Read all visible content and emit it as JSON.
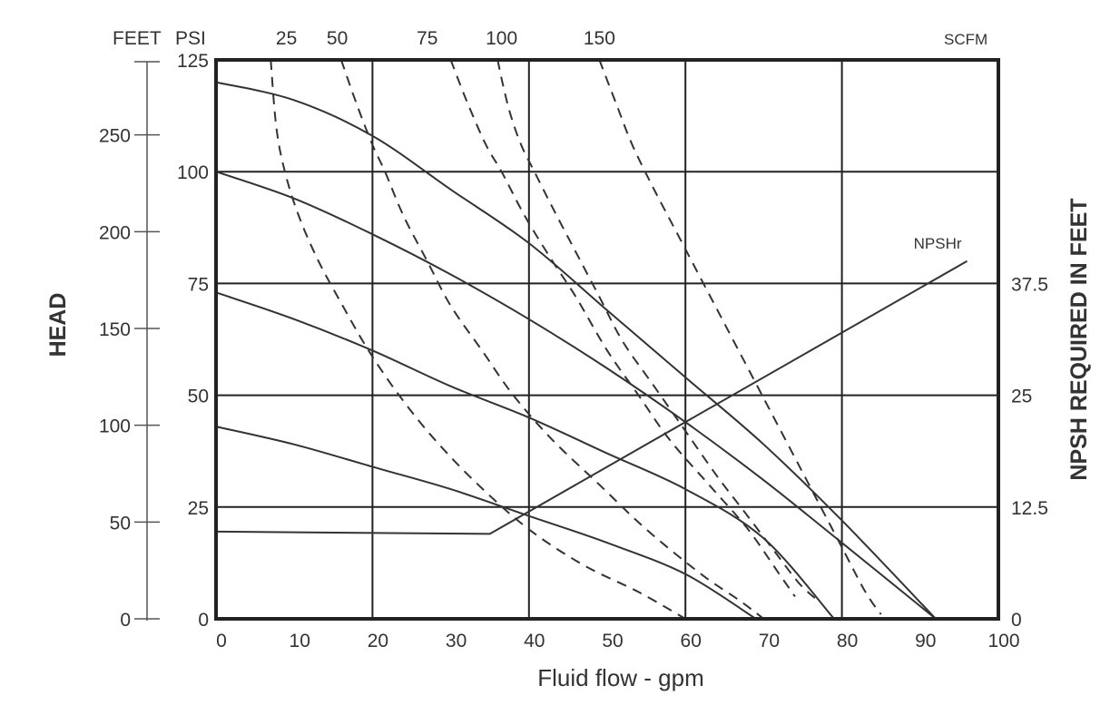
{
  "chart_data": {
    "type": "line",
    "title": "",
    "xlabel": "Fluid flow - gpm",
    "x_ticks": [
      "0",
      "10",
      "20",
      "30",
      "40",
      "50",
      "60",
      "70",
      "80",
      "90",
      "100"
    ],
    "xlim": [
      0,
      100
    ],
    "y_psi_label": "PSI",
    "y_psi_ticks": [
      "0",
      "25",
      "50",
      "75",
      "100",
      "125"
    ],
    "y_psi_lim": [
      0,
      125
    ],
    "y_feet_label": "FEET",
    "y_feet_ticks": [
      "0",
      "50",
      "100",
      "150",
      "200",
      "250"
    ],
    "y_feet_lim": [
      0,
      288.75
    ],
    "head_label": "HEAD",
    "npsh_axis_label": "NPSH REQUIRED IN FEET",
    "npsh_ticks": [
      "0",
      "12.5",
      "25",
      "37.5"
    ],
    "npsh_lim": [
      0,
      62.5
    ],
    "scfm_label": "SCFM",
    "scfm_ticks": [
      {
        "label": "25",
        "x": 9
      },
      {
        "label": "50",
        "x": 15.5
      },
      {
        "label": "75",
        "x": 27
      },
      {
        "label": "100",
        "x": 36.5
      },
      {
        "label": "150",
        "x": 49
      }
    ],
    "grid": true,
    "head_curves": [
      {
        "x": [
          0,
          10,
          20,
          30,
          40,
          50,
          60,
          70,
          80,
          92
        ],
        "y": [
          120,
          116,
          108,
          96,
          84,
          69,
          54,
          39,
          22,
          0
        ]
      },
      {
        "x": [
          0,
          10,
          20,
          30,
          40,
          50,
          60,
          70,
          80,
          92
        ],
        "y": [
          100,
          94,
          86,
          77,
          67,
          56,
          44,
          31,
          17,
          0
        ]
      },
      {
        "x": [
          0,
          10,
          20,
          30,
          40,
          50,
          60,
          70,
          79
        ],
        "y": [
          73,
          67,
          60,
          52,
          45,
          37,
          29,
          18,
          0
        ]
      },
      {
        "x": [
          0,
          10,
          20,
          30,
          40,
          50,
          60,
          69
        ],
        "y": [
          43,
          39,
          34,
          29,
          23,
          17,
          10,
          0
        ]
      }
    ],
    "scfm_curves": [
      {
        "name": "25",
        "x": [
          7,
          7.7,
          8.8,
          10.6,
          13.1,
          16.2,
          19.5,
          23.4,
          28,
          33.5,
          40,
          47,
          54,
          60
        ],
        "y": [
          125,
          110,
          100,
          90,
          80,
          70,
          60,
          50,
          40,
          30,
          20,
          12,
          6,
          0
        ]
      },
      {
        "name": "50",
        "x": [
          16,
          18,
          20,
          21.6,
          24,
          27,
          30,
          34,
          38,
          43,
          49,
          55,
          62,
          67,
          70
        ],
        "y": [
          125,
          115,
          106,
          100,
          90,
          80,
          70,
          60,
          50,
          40,
          30,
          20,
          10,
          4,
          0
        ]
      },
      {
        "name": "75",
        "x": [
          30,
          32,
          34.5,
          36.5,
          39.5,
          43,
          46,
          50,
          54,
          58,
          63,
          68,
          72,
          74
        ],
        "y": [
          125,
          116,
          106,
          100,
          90,
          80,
          72,
          60,
          50,
          40,
          30,
          20,
          10,
          5
        ]
      },
      {
        "name": "100",
        "x": [
          36,
          36.6,
          37.6,
          39,
          40.7,
          43,
          46,
          49,
          52,
          56,
          60,
          64,
          67.5,
          71,
          74.5,
          77
        ],
        "y": [
          125,
          120,
          113,
          106,
          100,
          92,
          82,
          72,
          62,
          52,
          42,
          32,
          24,
          16,
          8,
          4
        ]
      },
      {
        "name": "150",
        "x": [
          49,
          51.2,
          53.2,
          56,
          59,
          62,
          65,
          68,
          71,
          74,
          77,
          80,
          83,
          85
        ],
        "y": [
          125,
          115,
          106,
          96,
          86,
          76,
          66,
          56,
          46,
          36,
          26,
          16,
          6,
          1
        ]
      }
    ],
    "npsh_curve": {
      "label": "NPSHr",
      "x": [
        0,
        35,
        96
      ],
      "y": [
        19.5,
        19,
        80
      ]
    }
  }
}
